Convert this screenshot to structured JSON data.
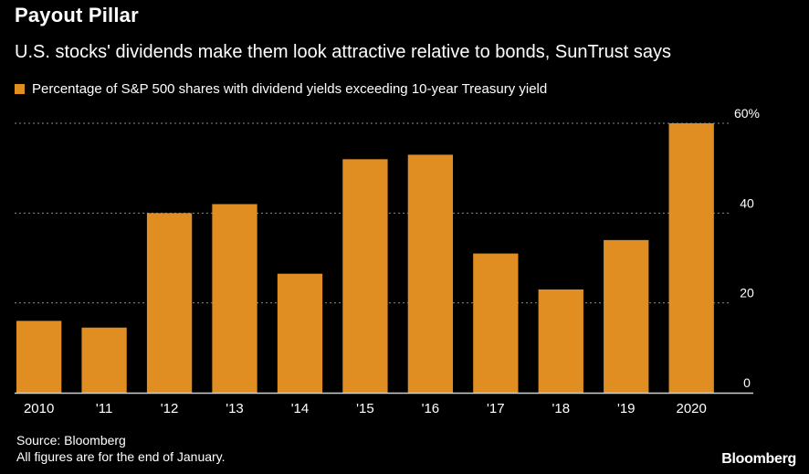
{
  "title": "Payout Pillar",
  "subtitle": "U.S. stocks' dividends make them look attractive relative to bonds, SunTrust says",
  "source": "Source: Bloomberg",
  "note": "All figures are for the end of January.",
  "brand": "Bloomberg",
  "colors": {
    "bar": "#e08e22",
    "grid": "#8a8a8a",
    "axis": "#cfcfcf",
    "text": "#ffffff"
  },
  "chart_data": {
    "type": "bar",
    "title": "Payout Pillar",
    "categories": [
      "2010",
      "'11",
      "'12",
      "'13",
      "'14",
      "'15",
      "'16",
      "'17",
      "'18",
      "'19",
      "2020"
    ],
    "series": [
      {
        "name": "Percentage of S&P 500 shares with dividend yields exceeding 10-year Treasury yield",
        "values": [
          16,
          14.5,
          40,
          42,
          26.5,
          52,
          53,
          31,
          23,
          34,
          60
        ]
      }
    ],
    "ylim": [
      0,
      60
    ],
    "yticks": [
      0,
      20,
      40,
      60
    ],
    "ytick_labels": [
      "0",
      "20",
      "40",
      "60%"
    ],
    "xlabel": "",
    "ylabel": "",
    "grid": true,
    "legend_position": "top-left"
  }
}
